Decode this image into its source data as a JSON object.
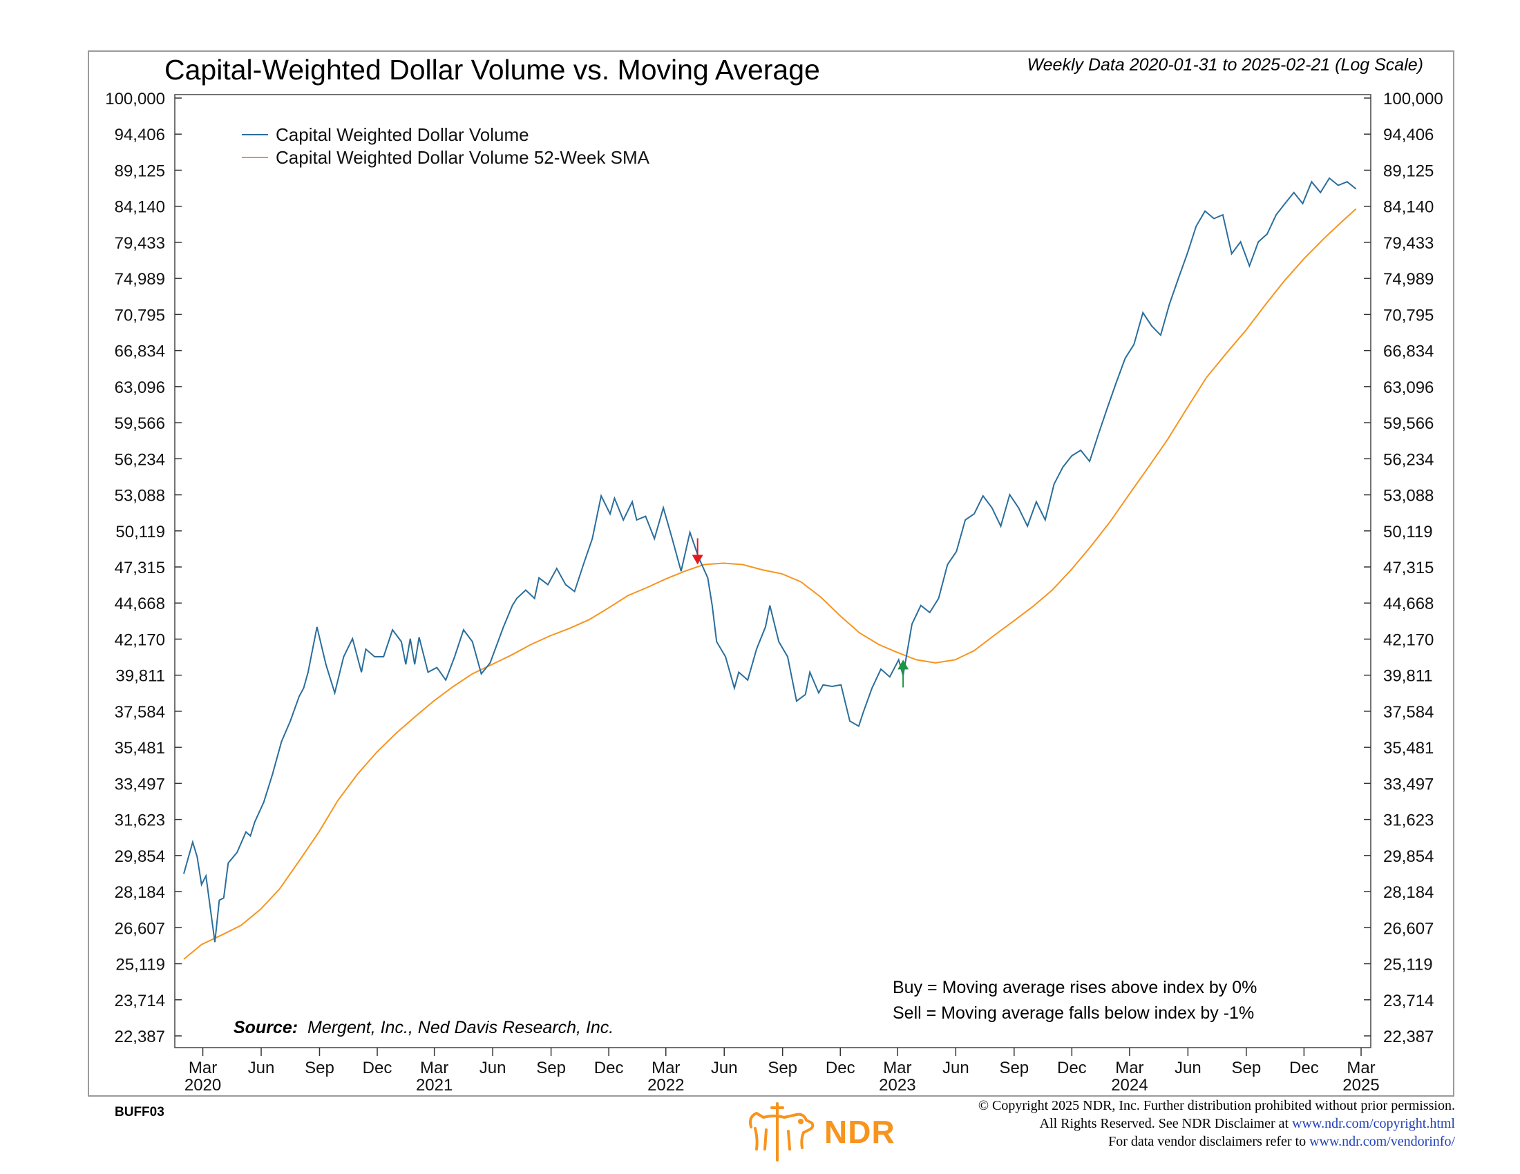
{
  "header": {
    "title": "Capital-Weighted Dollar Volume vs. Moving Average",
    "subtitle": "Weekly Data 2020-01-31 to 2025-02-21 (Log Scale)"
  },
  "signal_notes": {
    "buy": "Buy = Moving average rises above index by 0%",
    "sell": "Sell = Moving average falls below index by -1%"
  },
  "source": {
    "label": "Source:",
    "text": "Mergent, Inc., Ned Davis Research, Inc."
  },
  "footer": {
    "code": "BUFF03",
    "logo_text": "NDR",
    "copyright_line1": "© Copyright 2025 NDR, Inc. Further distribution prohibited without prior permission.",
    "copyright_line2_prefix": "All Rights Reserved. See NDR Disclaimer at ",
    "copyright_line2_link": "www.ndr.com/copyright.html",
    "copyright_line3_prefix": "For data vendor disclaimers refer to ",
    "copyright_line3_link": "www.ndr.com/vendorinfo/"
  },
  "colors": {
    "volume_line": "#2a6e9c",
    "sma_line": "#f7941d",
    "sell_arrow": "#e31a1c",
    "buy_arrow": "#1a9641",
    "brand": "#f7941d"
  },
  "chart_data": {
    "type": "line",
    "y_scale": "log",
    "ylim": [
      22387,
      100000
    ],
    "y_ticks": [
      "100,000",
      "94,406",
      "89,125",
      "84,140",
      "79,433",
      "74,989",
      "70,795",
      "66,834",
      "63,096",
      "59,566",
      "56,234",
      "53,088",
      "50,119",
      "47,315",
      "44,668",
      "42,170",
      "39,811",
      "37,584",
      "35,481",
      "33,497",
      "31,623",
      "29,854",
      "28,184",
      "26,607",
      "25,119",
      "23,714",
      "22,387"
    ],
    "x_range": [
      "2020-01-31",
      "2025-03-01"
    ],
    "x_month_ticks": [
      "Mar",
      "Jun",
      "Sep",
      "Dec",
      "Mar",
      "Jun",
      "Sep",
      "Dec",
      "Mar",
      "Jun",
      "Sep",
      "Dec",
      "Mar",
      "Jun",
      "Sep",
      "Dec",
      "Mar",
      "Jun",
      "Sep",
      "Dec",
      "Mar"
    ],
    "x_year_labels": [
      "2020",
      "2021",
      "2022",
      "2023",
      "2024",
      "2025"
    ],
    "legend_position": "top-left",
    "series": [
      {
        "name": "Capital Weighted Dollar Volume",
        "points": [
          [
            "2020-01-31",
            29000
          ],
          [
            "2020-02-14",
            30500
          ],
          [
            "2020-02-21",
            29800
          ],
          [
            "2020-02-28",
            28500
          ],
          [
            "2020-03-06",
            28900
          ],
          [
            "2020-03-20",
            26000
          ],
          [
            "2020-03-27",
            27800
          ],
          [
            "2020-04-03",
            27900
          ],
          [
            "2020-04-10",
            29500
          ],
          [
            "2020-04-24",
            30000
          ],
          [
            "2020-05-08",
            31000
          ],
          [
            "2020-05-15",
            30800
          ],
          [
            "2020-05-22",
            31500
          ],
          [
            "2020-06-05",
            32500
          ],
          [
            "2020-06-19",
            34000
          ],
          [
            "2020-07-03",
            35800
          ],
          [
            "2020-07-17",
            37000
          ],
          [
            "2020-07-31",
            38500
          ],
          [
            "2020-08-07",
            39000
          ],
          [
            "2020-08-14",
            40000
          ],
          [
            "2020-08-28",
            43000
          ],
          [
            "2020-09-11",
            40500
          ],
          [
            "2020-09-25",
            38700
          ],
          [
            "2020-10-09",
            41000
          ],
          [
            "2020-10-23",
            42200
          ],
          [
            "2020-11-06",
            40000
          ],
          [
            "2020-11-13",
            41500
          ],
          [
            "2020-11-27",
            41000
          ],
          [
            "2020-12-11",
            41000
          ],
          [
            "2020-12-25",
            42800
          ],
          [
            "2021-01-08",
            42000
          ],
          [
            "2021-01-15",
            40500
          ],
          [
            "2021-01-22",
            42200
          ],
          [
            "2021-01-29",
            40500
          ],
          [
            "2021-02-05",
            42300
          ],
          [
            "2021-02-19",
            40000
          ],
          [
            "2021-03-05",
            40300
          ],
          [
            "2021-03-19",
            39500
          ],
          [
            "2021-04-02",
            41000
          ],
          [
            "2021-04-16",
            42800
          ],
          [
            "2021-04-30",
            42000
          ],
          [
            "2021-05-14",
            39900
          ],
          [
            "2021-05-28",
            40600
          ],
          [
            "2021-06-18",
            43000
          ],
          [
            "2021-07-02",
            44500
          ],
          [
            "2021-07-09",
            45000
          ],
          [
            "2021-07-23",
            45600
          ],
          [
            "2021-08-06",
            45000
          ],
          [
            "2021-08-13",
            46500
          ],
          [
            "2021-08-27",
            46000
          ],
          [
            "2021-09-10",
            47200
          ],
          [
            "2021-09-24",
            46000
          ],
          [
            "2021-10-08",
            45500
          ],
          [
            "2021-10-22",
            47500
          ],
          [
            "2021-11-05",
            49500
          ],
          [
            "2021-11-19",
            53000
          ],
          [
            "2021-12-03",
            51500
          ],
          [
            "2021-12-10",
            52800
          ],
          [
            "2021-12-24",
            51000
          ],
          [
            "2022-01-07",
            52500
          ],
          [
            "2022-01-14",
            51000
          ],
          [
            "2022-01-28",
            51300
          ],
          [
            "2022-02-11",
            49500
          ],
          [
            "2022-02-25",
            52000
          ],
          [
            "2022-03-11",
            49500
          ],
          [
            "2022-03-25",
            47000
          ],
          [
            "2022-04-08",
            50000
          ],
          [
            "2022-04-22",
            48000
          ],
          [
            "2022-05-06",
            46500
          ],
          [
            "2022-05-13",
            44500
          ],
          [
            "2022-05-20",
            42000
          ],
          [
            "2022-06-03",
            41000
          ],
          [
            "2022-06-17",
            39000
          ],
          [
            "2022-06-24",
            40000
          ],
          [
            "2022-07-08",
            39500
          ],
          [
            "2022-07-22",
            41500
          ],
          [
            "2022-08-05",
            43000
          ],
          [
            "2022-08-12",
            44500
          ],
          [
            "2022-08-26",
            42000
          ],
          [
            "2022-09-09",
            41000
          ],
          [
            "2022-09-23",
            38200
          ],
          [
            "2022-10-07",
            38600
          ],
          [
            "2022-10-14",
            40000
          ],
          [
            "2022-10-28",
            38700
          ],
          [
            "2022-11-04",
            39200
          ],
          [
            "2022-11-18",
            39100
          ],
          [
            "2022-12-02",
            39200
          ],
          [
            "2022-12-16",
            37000
          ],
          [
            "2022-12-30",
            36700
          ],
          [
            "2023-01-06",
            37500
          ],
          [
            "2023-01-20",
            39000
          ],
          [
            "2023-02-03",
            40200
          ],
          [
            "2023-02-17",
            39700
          ],
          [
            "2023-03-03",
            40800
          ],
          [
            "2023-03-10",
            39800
          ],
          [
            "2023-03-24",
            43200
          ],
          [
            "2023-04-07",
            44500
          ],
          [
            "2023-04-21",
            44000
          ],
          [
            "2023-05-05",
            45000
          ],
          [
            "2023-05-19",
            47500
          ],
          [
            "2023-06-02",
            48500
          ],
          [
            "2023-06-16",
            51000
          ],
          [
            "2023-06-30",
            51500
          ],
          [
            "2023-07-14",
            53000
          ],
          [
            "2023-07-28",
            52000
          ],
          [
            "2023-08-11",
            50500
          ],
          [
            "2023-08-25",
            53100
          ],
          [
            "2023-09-08",
            52000
          ],
          [
            "2023-09-22",
            50500
          ],
          [
            "2023-10-06",
            52500
          ],
          [
            "2023-10-20",
            51000
          ],
          [
            "2023-11-03",
            54000
          ],
          [
            "2023-11-17",
            55500
          ],
          [
            "2023-12-01",
            56500
          ],
          [
            "2023-12-15",
            57000
          ],
          [
            "2023-12-29",
            56000
          ],
          [
            "2024-01-12",
            58500
          ],
          [
            "2024-01-26",
            61000
          ],
          [
            "2024-02-09",
            63500
          ],
          [
            "2024-02-23",
            66000
          ],
          [
            "2024-03-08",
            67500
          ],
          [
            "2024-03-22",
            71000
          ],
          [
            "2024-04-05",
            69500
          ],
          [
            "2024-04-19",
            68500
          ],
          [
            "2024-05-03",
            72000
          ],
          [
            "2024-05-17",
            75000
          ],
          [
            "2024-05-31",
            78000
          ],
          [
            "2024-06-14",
            81500
          ],
          [
            "2024-06-28",
            83500
          ],
          [
            "2024-07-12",
            82500
          ],
          [
            "2024-07-26",
            83000
          ],
          [
            "2024-08-09",
            78000
          ],
          [
            "2024-08-23",
            79500
          ],
          [
            "2024-09-06",
            76500
          ],
          [
            "2024-09-20",
            79500
          ],
          [
            "2024-10-04",
            80500
          ],
          [
            "2024-10-18",
            83000
          ],
          [
            "2024-11-01",
            84500
          ],
          [
            "2024-11-15",
            86000
          ],
          [
            "2024-11-29",
            84500
          ],
          [
            "2024-12-13",
            87500
          ],
          [
            "2024-12-27",
            86000
          ],
          [
            "2025-01-10",
            88000
          ],
          [
            "2025-01-24",
            87000
          ],
          [
            "2025-02-07",
            87500
          ],
          [
            "2025-02-21",
            86500
          ]
        ]
      },
      {
        "name": "Capital Weighted Dollar Volume 52-Week SMA",
        "points": [
          [
            "2020-01-31",
            25300
          ],
          [
            "2020-02-28",
            25900
          ],
          [
            "2020-03-31",
            26300
          ],
          [
            "2020-04-30",
            26700
          ],
          [
            "2020-05-31",
            27400
          ],
          [
            "2020-06-30",
            28300
          ],
          [
            "2020-07-31",
            29600
          ],
          [
            "2020-08-31",
            31000
          ],
          [
            "2020-09-30",
            32600
          ],
          [
            "2020-10-31",
            34000
          ],
          [
            "2020-11-30",
            35200
          ],
          [
            "2020-12-31",
            36300
          ],
          [
            "2021-01-31",
            37300
          ],
          [
            "2021-02-28",
            38200
          ],
          [
            "2021-03-31",
            39100
          ],
          [
            "2021-04-30",
            39900
          ],
          [
            "2021-05-31",
            40500
          ],
          [
            "2021-06-30",
            41100
          ],
          [
            "2021-07-31",
            41800
          ],
          [
            "2021-08-31",
            42400
          ],
          [
            "2021-09-30",
            42900
          ],
          [
            "2021-10-31",
            43500
          ],
          [
            "2021-11-30",
            44300
          ],
          [
            "2021-12-31",
            45200
          ],
          [
            "2022-01-31",
            45800
          ],
          [
            "2022-02-28",
            46400
          ],
          [
            "2022-03-31",
            47000
          ],
          [
            "2022-04-30",
            47500
          ],
          [
            "2022-05-31",
            47600
          ],
          [
            "2022-06-30",
            47500
          ],
          [
            "2022-07-31",
            47100
          ],
          [
            "2022-08-31",
            46800
          ],
          [
            "2022-09-30",
            46200
          ],
          [
            "2022-10-31",
            45100
          ],
          [
            "2022-11-30",
            43800
          ],
          [
            "2022-12-31",
            42600
          ],
          [
            "2023-01-31",
            41800
          ],
          [
            "2023-02-28",
            41300
          ],
          [
            "2023-03-31",
            40800
          ],
          [
            "2023-04-30",
            40600
          ],
          [
            "2023-05-31",
            40800
          ],
          [
            "2023-06-30",
            41400
          ],
          [
            "2023-07-31",
            42400
          ],
          [
            "2023-08-31",
            43400
          ],
          [
            "2023-09-30",
            44400
          ],
          [
            "2023-10-31",
            45600
          ],
          [
            "2023-11-30",
            47100
          ],
          [
            "2023-12-31",
            48900
          ],
          [
            "2024-01-31",
            50900
          ],
          [
            "2024-02-29",
            53100
          ],
          [
            "2024-03-31",
            55500
          ],
          [
            "2024-04-30",
            58000
          ],
          [
            "2024-05-31",
            61000
          ],
          [
            "2024-06-30",
            64000
          ],
          [
            "2024-07-31",
            66500
          ],
          [
            "2024-08-31",
            69000
          ],
          [
            "2024-09-30",
            71800
          ],
          [
            "2024-10-31",
            74700
          ],
          [
            "2024-11-30",
            77300
          ],
          [
            "2024-12-31",
            79800
          ],
          [
            "2025-01-31",
            82200
          ],
          [
            "2025-02-21",
            83800
          ]
        ]
      }
    ],
    "signals": [
      {
        "type": "sell",
        "date": "2022-04-20",
        "value": 47500
      },
      {
        "type": "buy",
        "date": "2023-03-10",
        "value": 40800
      }
    ]
  }
}
